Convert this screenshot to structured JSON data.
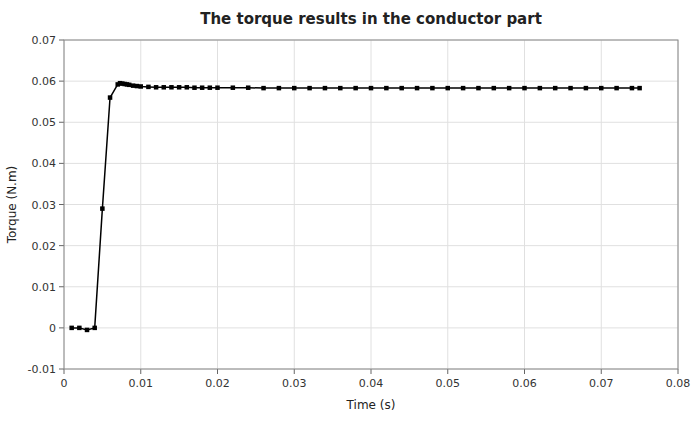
{
  "chart_data": {
    "type": "line",
    "title": "The torque results in the conductor part",
    "xlabel": "Time (s)",
    "ylabel": "Torque (N.m)",
    "xlim": [
      0,
      0.08
    ],
    "ylim": [
      -0.01,
      0.07
    ],
    "xticks": [
      0,
      0.01,
      0.02,
      0.03,
      0.04,
      0.05,
      0.06,
      0.07,
      0.08
    ],
    "yticks": [
      -0.01,
      0,
      0.01,
      0.02,
      0.03,
      0.04,
      0.05,
      0.06,
      0.07
    ],
    "color": "#000000",
    "marker": "square",
    "grid": true,
    "x": [
      0.001,
      0.002,
      0.003,
      0.004,
      0.005,
      0.006,
      0.007,
      0.0073,
      0.0076,
      0.0079,
      0.0082,
      0.0085,
      0.009,
      0.0095,
      0.01,
      0.011,
      0.012,
      0.013,
      0.014,
      0.015,
      0.016,
      0.017,
      0.018,
      0.019,
      0.02,
      0.022,
      0.024,
      0.026,
      0.028,
      0.03,
      0.032,
      0.034,
      0.036,
      0.038,
      0.04,
      0.042,
      0.044,
      0.046,
      0.048,
      0.05,
      0.052,
      0.054,
      0.056,
      0.058,
      0.06,
      0.062,
      0.064,
      0.066,
      0.068,
      0.07,
      0.072,
      0.074,
      0.075
    ],
    "values": [
      0.0,
      0.0,
      -0.0005,
      0.0,
      0.029,
      0.056,
      0.0592,
      0.0595,
      0.0594,
      0.0593,
      0.0592,
      0.0591,
      0.0589,
      0.0588,
      0.0587,
      0.0586,
      0.0585,
      0.0585,
      0.0585,
      0.0585,
      0.0585,
      0.0584,
      0.0584,
      0.0584,
      0.0584,
      0.0584,
      0.0584,
      0.0583,
      0.0583,
      0.0583,
      0.0583,
      0.0583,
      0.0583,
      0.0583,
      0.0583,
      0.0583,
      0.0583,
      0.0583,
      0.0583,
      0.0583,
      0.0583,
      0.0583,
      0.0583,
      0.0583,
      0.0583,
      0.0583,
      0.0583,
      0.0583,
      0.0583,
      0.0583,
      0.0583,
      0.0583,
      0.0583
    ]
  }
}
